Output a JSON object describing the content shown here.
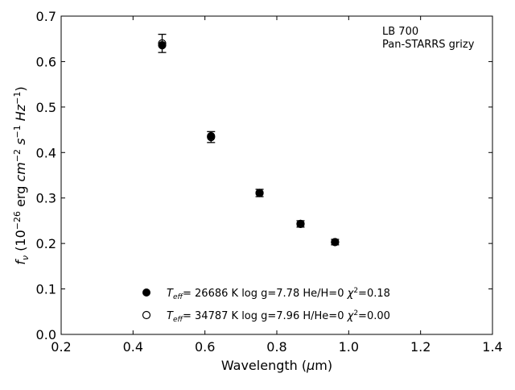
{
  "chart_data": {
    "type": "scatter",
    "xlabel": "Wavelength (μm)",
    "ylabel": "f_ν (10^-26 erg cm^-2 s^-1 Hz^-1)",
    "xlim": [
      0.2,
      1.4
    ],
    "ylim": [
      0.0,
      0.7
    ],
    "xticks": [
      0.2,
      0.4,
      0.6,
      0.8,
      1.0,
      1.2,
      1.4
    ],
    "yticks": [
      0.0,
      0.1,
      0.2,
      0.3,
      0.4,
      0.5,
      0.6,
      0.7
    ],
    "grid": false,
    "legend_position": "bottom-center",
    "annotation": {
      "line1": "LB 700",
      "line2": "Pan-STARRS grizy"
    },
    "observed": {
      "x": [
        0.481,
        0.617,
        0.752,
        0.866,
        0.962
      ],
      "y": [
        0.64,
        0.434,
        0.311,
        0.243,
        0.203
      ],
      "yerr": [
        0.02,
        0.012,
        0.008,
        0.007,
        0.006
      ]
    },
    "series": [
      {
        "name": "T_eff= 26686 K  log g=7.78  He/H=0  χ²=0.18",
        "marker": "filled-circle",
        "x": [
          0.481,
          0.617,
          0.752,
          0.866,
          0.962
        ],
        "y": [
          0.636,
          0.436,
          0.311,
          0.243,
          0.203
        ]
      },
      {
        "name": "T_eff= 34787 K  log g=7.96  H/He=0  χ²=0.00",
        "marker": "open-circle",
        "x": [
          0.481,
          0.617,
          0.752,
          0.866,
          0.962
        ],
        "y": [
          0.64,
          0.434,
          0.311,
          0.243,
          0.203
        ]
      }
    ],
    "legend": [
      {
        "marker": "filled-circle",
        "teff": "26686 K",
        "logg": "log g=7.78",
        "comp": "He/H=0",
        "chi2": "=0.18"
      },
      {
        "marker": "open-circle",
        "teff": "34787 K",
        "logg": "log g=7.96",
        "comp": "H/He=0",
        "chi2": "=0.00"
      }
    ],
    "colors": {
      "marker": "#000000",
      "axis": "#000000",
      "background": "#ffffff"
    }
  }
}
